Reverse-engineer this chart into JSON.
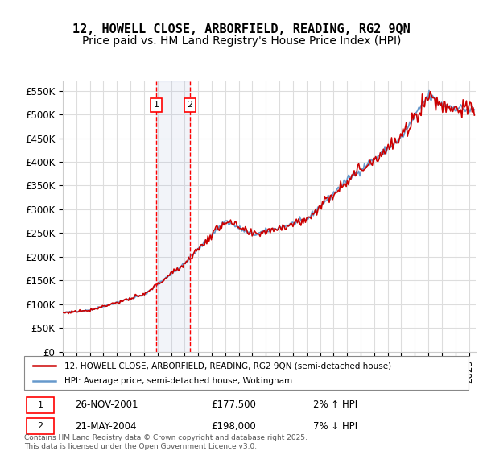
{
  "title": "12, HOWELL CLOSE, ARBORFIELD, READING, RG2 9QN",
  "subtitle": "Price paid vs. HM Land Registry's House Price Index (HPI)",
  "ylabel_vals": [
    0,
    50000,
    100000,
    150000,
    200000,
    250000,
    300000,
    350000,
    400000,
    450000,
    500000,
    550000
  ],
  "ylabel_labels": [
    "£0",
    "£50K",
    "£100K",
    "£150K",
    "£200K",
    "£250K",
    "£300K",
    "£350K",
    "£400K",
    "£450K",
    "£500K",
    "£550K"
  ],
  "ylim": [
    0,
    570000
  ],
  "xlim_start": 1995.0,
  "xlim_end": 2025.5,
  "transaction1_date": 2001.9,
  "transaction1_price": 177500,
  "transaction2_date": 2004.38,
  "transaction2_price": 198000,
  "transaction1_label": "1",
  "transaction2_label": "2",
  "transaction1_info": "26-NOV-2001",
  "transaction1_price_str": "£177,500",
  "transaction1_hpi": "2% ↑ HPI",
  "transaction2_info": "21-MAY-2004",
  "transaction2_price_str": "£198,000",
  "transaction2_hpi": "7% ↓ HPI",
  "hpi_line_color": "#6699cc",
  "price_line_color": "#cc0000",
  "vline_color": "#ff0000",
  "shade_color": "#aabbdd",
  "legend1": "12, HOWELL CLOSE, ARBORFIELD, READING, RG2 9QN (semi-detached house)",
  "legend2": "HPI: Average price, semi-detached house, Wokingham",
  "footer": "Contains HM Land Registry data © Crown copyright and database right 2025.\nThis data is licensed under the Open Government Licence v3.0.",
  "background_color": "#ffffff",
  "grid_color": "#dddddd",
  "title_fontsize": 11,
  "subtitle_fontsize": 10,
  "axis_fontsize": 8.5
}
